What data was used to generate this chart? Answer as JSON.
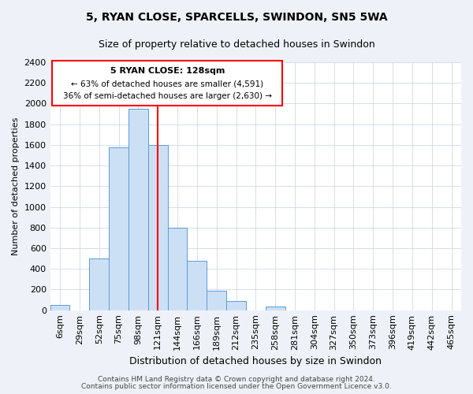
{
  "title": "5, RYAN CLOSE, SPARCELLS, SWINDON, SN5 5WA",
  "subtitle": "Size of property relative to detached houses in Swindon",
  "xlabel": "Distribution of detached houses by size in Swindon",
  "ylabel": "Number of detached properties",
  "bin_labels": [
    "6sqm",
    "29sqm",
    "52sqm",
    "75sqm",
    "98sqm",
    "121sqm",
    "144sqm",
    "166sqm",
    "189sqm",
    "212sqm",
    "235sqm",
    "258sqm",
    "281sqm",
    "304sqm",
    "327sqm",
    "350sqm",
    "373sqm",
    "396sqm",
    "419sqm",
    "442sqm",
    "465sqm"
  ],
  "bar_heights": [
    50,
    0,
    500,
    1580,
    1950,
    1600,
    800,
    480,
    190,
    90,
    0,
    35,
    0,
    0,
    0,
    0,
    0,
    0,
    0,
    0,
    0
  ],
  "bar_color": "#cce0f5",
  "bar_edge_color": "#5b9bd5",
  "vline_x_index": 5,
  "vline_color": "red",
  "annotation_title": "5 RYAN CLOSE: 128sqm",
  "annotation_line1": "← 63% of detached houses are smaller (4,591)",
  "annotation_line2": "36% of semi-detached houses are larger (2,630) →",
  "annotation_box_color": "white",
  "annotation_box_edge": "red",
  "ylim": [
    0,
    2400
  ],
  "yticks": [
    0,
    200,
    400,
    600,
    800,
    1000,
    1200,
    1400,
    1600,
    1800,
    2000,
    2200,
    2400
  ],
  "footer1": "Contains HM Land Registry data © Crown copyright and database right 2024.",
  "footer2": "Contains public sector information licensed under the Open Government Licence v3.0.",
  "background_color": "#eef2f8",
  "plot_bg_color": "#ffffff",
  "grid_color": "#d0d8e8"
}
